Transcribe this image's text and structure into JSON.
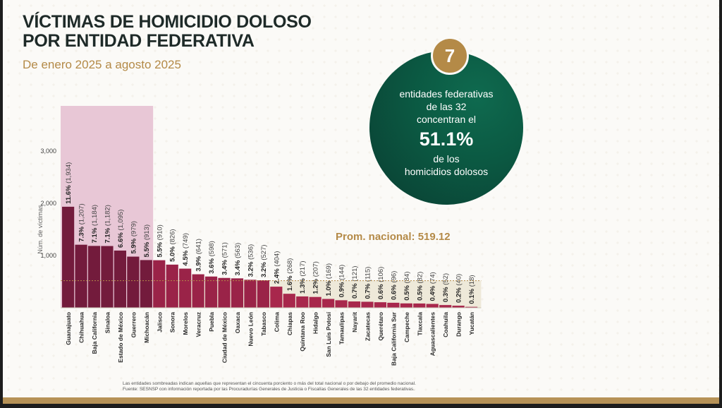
{
  "title_line1": "VÍCTIMAS DE HOMICIDIO DOLOSO",
  "title_line2": "POR ENTIDAD FEDERATIVA",
  "subtitle": "De enero 2025 a agosto 2025",
  "callout": {
    "number": "7",
    "line1": "entidades federativas",
    "line2": "de las 32",
    "line3": "concentran el",
    "percent": "51.1%",
    "line4": "de los",
    "line5": "homicidios dolosos"
  },
  "footnote_line1": "Las entidades sombreadas indican aquellas que representan el cincuenta porciento o más del total nacional o por debajo del promedio nacional.",
  "footnote_line2": "Fuente: SESNSP con información reportada por las Procuradurías Generales de Justicia o Fiscalías Generales de las 32 entidades federativas.",
  "colors": {
    "bar_dark": "#731b3c",
    "bar_mid": "#9a2348",
    "bar_light": "#a8274c",
    "highlight_top": "#e8c7d6",
    "highlight_bottom": "#eee9d9",
    "avg_line": "#b48a47",
    "circle_dark": "#0a3d31",
    "badge_gold": "#b48a47"
  },
  "chart_data": {
    "type": "bar",
    "ylabel": "Núm. de víctimas",
    "yticks": [
      "3,000",
      "2,000",
      "1,000"
    ],
    "ytick_values": [
      3000,
      2000,
      1000
    ],
    "ylim": [
      0,
      3000
    ],
    "average_label": "Prom. nacional: 519.12",
    "average_value": 519.12,
    "highlight_top_count": 7,
    "categories": [
      "Guanajuato",
      "Chihuahua",
      "Baja California",
      "Sinaloa",
      "Estado de México",
      "Guerrero",
      "Michoacán",
      "Jalisco",
      "Sonora",
      "Morelos",
      "Veracruz",
      "Puebla",
      "Ciudad de México",
      "Oaxaca",
      "Nuevo León",
      "Tabasco",
      "Colima",
      "Chiapas",
      "Quintana Roo",
      "Hidalgo",
      "San Luis Potosí",
      "Tamaulipas",
      "Nayarit",
      "Zacatecas",
      "Querétaro",
      "Baja California Sur",
      "Campeche",
      "Tlaxcala",
      "Aguascalientes",
      "Coahuila",
      "Durango",
      "Yucatán"
    ],
    "values": [
      1934,
      1207,
      1184,
      1182,
      1095,
      979,
      913,
      910,
      826,
      749,
      641,
      598,
      571,
      563,
      536,
      527,
      404,
      268,
      217,
      207,
      169,
      144,
      121,
      115,
      106,
      96,
      84,
      82,
      74,
      52,
      40,
      18
    ],
    "pct_labels": [
      "11.6%",
      "7.3%",
      "7.1%",
      "7.1%",
      "6.6%",
      "5.9%",
      "5.5%",
      "5.5%",
      "5.0%",
      "4.5%",
      "3.9%",
      "3.6%",
      "3.4%",
      "3.4%",
      "3.2%",
      "3.2%",
      "2.4%",
      "1.6%",
      "1.3%",
      "1.2%",
      "1.0%",
      "0.9%",
      "0.7%",
      "0.7%",
      "0.6%",
      "0.6%",
      "0.5%",
      "0.5%",
      "0.4%",
      "0.3%",
      "0.2%",
      "0.1%"
    ],
    "value_labels": [
      "(1,934)",
      "(1,207)",
      "(1,184)",
      "(1,182)",
      "(1,095)",
      "(979)",
      "(913)",
      "(910)",
      "(826)",
      "(749)",
      "(641)",
      "(598)",
      "(571)",
      "(563)",
      "(536)",
      "(527)",
      "(404)",
      "(268)",
      "(217)",
      "(207)",
      "(169)",
      "(144)",
      "(121)",
      "(115)",
      "(106)",
      "(96)",
      "(84)",
      "(82)",
      "(74)",
      "(52)",
      "(40)",
      "(18)"
    ]
  }
}
